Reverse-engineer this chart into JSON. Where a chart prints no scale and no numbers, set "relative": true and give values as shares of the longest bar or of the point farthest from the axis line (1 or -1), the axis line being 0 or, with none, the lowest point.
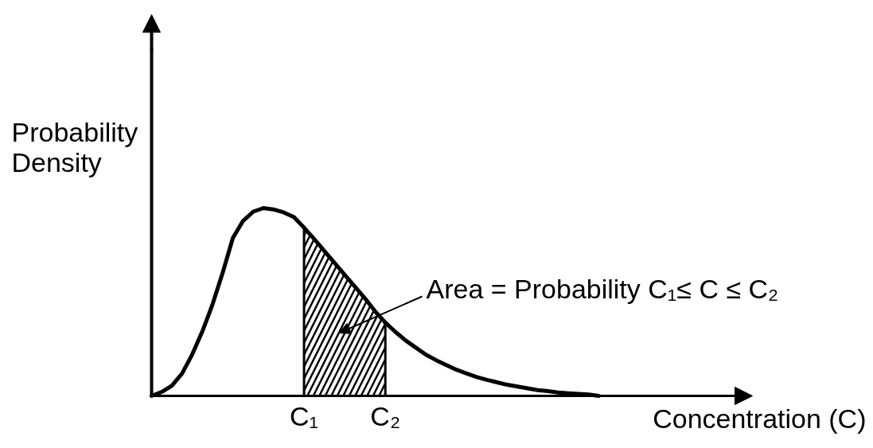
{
  "chart_data": {
    "type": "line",
    "relative": true,
    "grid": false,
    "xlabel": "Concentration (C)",
    "ylabel": "Probability Density",
    "categories": [
      null,
      null,
      null,
      null,
      null,
      null,
      null,
      null,
      null,
      null,
      null,
      null,
      null,
      null,
      null,
      "C₁",
      null,
      null,
      null,
      null,
      null,
      null,
      null,
      "C₂",
      null,
      null,
      null,
      null,
      null,
      null,
      null,
      null,
      null,
      null,
      null,
      null,
      null,
      null,
      null,
      null,
      null,
      null,
      null,
      null,
      null
    ],
    "series": [
      {
        "color": "#000000",
        "values": [
          0,
          0.021,
          0.055,
          0.119,
          0.221,
          0.344,
          0.488,
          0.657,
          0.841,
          0.932,
          0.981,
          1,
          0.993,
          0.977,
          0.952,
          0.896,
          0.835,
          0.772,
          0.708,
          0.645,
          0.582,
          0.519,
          0.45,
          0.39,
          0.34,
          0.295,
          0.257,
          0.219,
          0.19,
          0.164,
          0.139,
          0.119,
          0.1,
          0.085,
          0.072,
          0.059,
          0.05,
          0.04,
          0.031,
          0.025,
          0.018,
          0.014,
          0.011,
          0.007,
          0
        ]
      },
      {
        "type": "area",
        "color": "#000000",
        "values": [
          null,
          null,
          null,
          null,
          null,
          null,
          null,
          null,
          null,
          null,
          null,
          null,
          null,
          null,
          null,
          0.896,
          0.835,
          0.772,
          0.708,
          0.645,
          0.582,
          0.519,
          0.45,
          0.39,
          null,
          null,
          null,
          null,
          null,
          null,
          null,
          null,
          null,
          null,
          null,
          null,
          null,
          null,
          null,
          null,
          null,
          null,
          null,
          null,
          null
        ]
      }
    ],
    "annotations": [
      "Area = Probability C₁≤ C ≤ C₂"
    ]
  }
}
